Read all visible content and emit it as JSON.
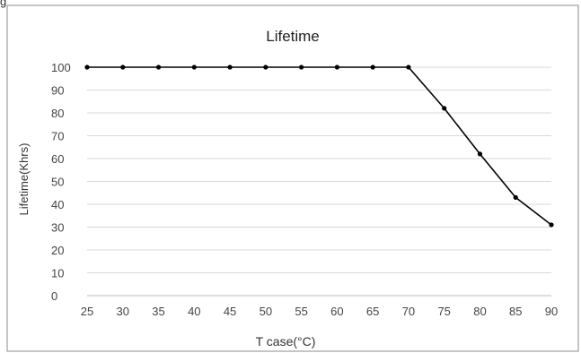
{
  "chart_data": {
    "type": "line",
    "title": "Lifetime",
    "xlabel": "T case(°C)",
    "ylabel": "Lifetime(Khrs)",
    "x": [
      25,
      30,
      35,
      40,
      45,
      50,
      55,
      60,
      65,
      70,
      75,
      80,
      85,
      90
    ],
    "series": [
      {
        "values": [
          100,
          100,
          100,
          100,
          100,
          100,
          100,
          100,
          100,
          100,
          82,
          62,
          43,
          31
        ]
      }
    ],
    "xticks": [
      "25",
      "30",
      "35",
      "40",
      "45",
      "50",
      "55",
      "60",
      "65",
      "70",
      "75",
      "80",
      "85",
      "90"
    ],
    "yticks": [
      "0",
      "10",
      "20",
      "30",
      "40",
      "50",
      "60",
      "70",
      "80",
      "90",
      "100"
    ],
    "xlim": [
      25,
      90
    ],
    "ylim": [
      0,
      100
    ],
    "grid": true,
    "legend": "none",
    "line_color": "#000000",
    "grid_color": "#d9d9d9"
  },
  "fragment_text": "g"
}
